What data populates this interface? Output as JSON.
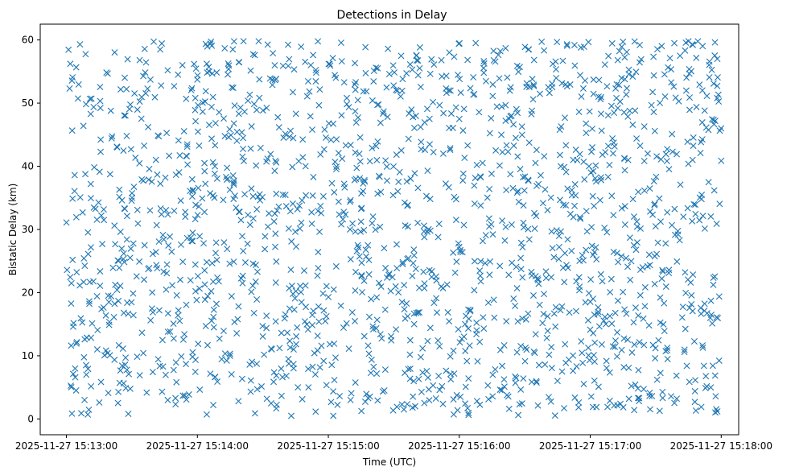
{
  "chart_data": {
    "type": "scatter",
    "title": "Detections in Delay",
    "xlabel": "Time (UTC)",
    "ylabel": "Bistatic Delay (km)",
    "marker": "x",
    "color": "#1f77b4",
    "grid": false,
    "legend": "none",
    "x_range": [
      "2025-11-27 15:12:48",
      "2025-11-27 15:18:08"
    ],
    "ylim": [
      -2.5,
      62.5
    ],
    "x_ticks": [
      "2025-11-27 15:13:00",
      "2025-11-27 15:14:00",
      "2025-11-27 15:15:00",
      "2025-11-27 15:16:00",
      "2025-11-27 15:17:00",
      "2025-11-27 15:18:00"
    ],
    "y_ticks": [
      "0",
      "10",
      "20",
      "30",
      "40",
      "50",
      "60"
    ],
    "data_range": {
      "x_start": "2025-11-27 15:13:00",
      "x_end": "2025-11-27 15:18:00",
      "y_min": 0.5,
      "y_max": 59.8
    },
    "point_count_estimate": 1800
  }
}
